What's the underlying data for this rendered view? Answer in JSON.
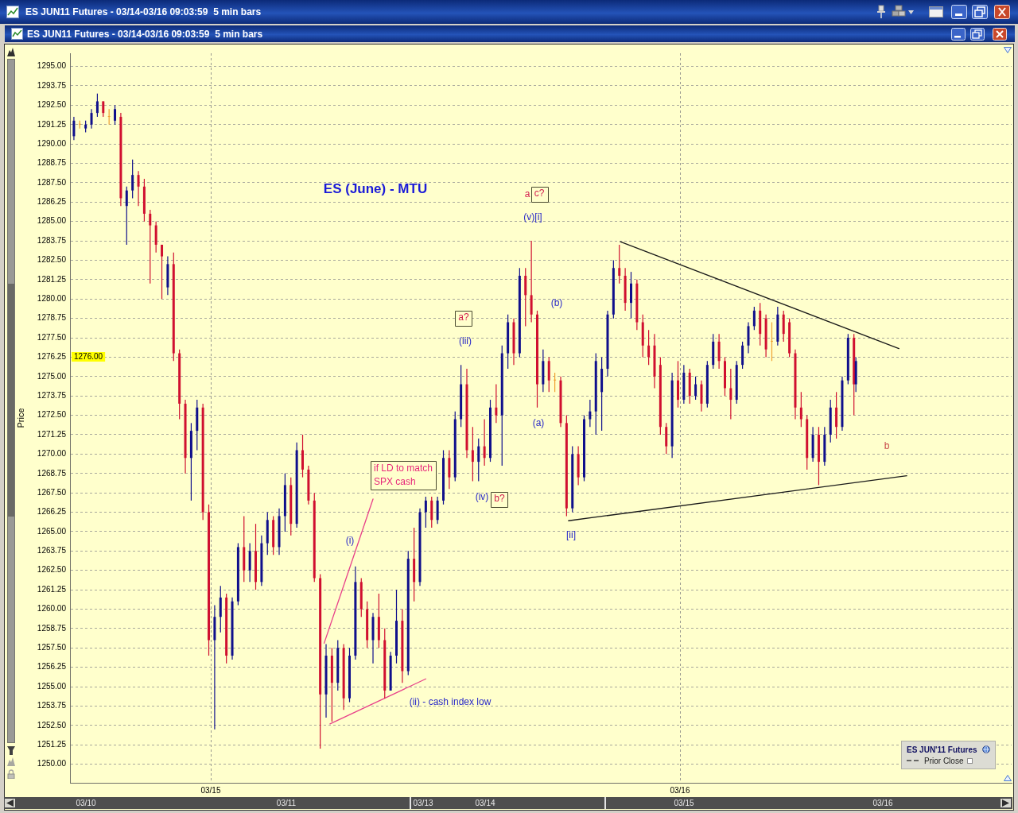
{
  "chart_data": {
    "type": "candlestick",
    "title": "ES JUN11 Futures - 03/14-03/16 09:03:59  5 min bars",
    "subtitle": "ES (June) - MTU",
    "ylabel": "Price",
    "legend_title": "ES JUN'11 Futures",
    "xlim": [
      "--03-14T16:48",
      "--03-16T16:58"
    ],
    "xticks": [
      {
        "value": "--03-15",
        "label": "03/15"
      },
      {
        "value": "--03-16",
        "label": "03/16"
      }
    ],
    "ylim": [
      1248.8,
      1295.85
    ],
    "yticks": [
      {
        "value": 1250,
        "label": "1250.00"
      },
      1251.25,
      {
        "value": 1252.5,
        "label": "1252.50"
      },
      1253.75,
      {
        "value": 1255,
        "label": "1255.00"
      },
      1256.25,
      {
        "value": 1257.5,
        "label": "1257.50"
      },
      1258.75,
      {
        "value": 1260,
        "label": "1260.00"
      },
      1261.25,
      {
        "value": 1262.5,
        "label": "1262.50"
      },
      1263.75,
      {
        "value": 1265,
        "label": "1265.00"
      },
      1266.25,
      {
        "value": 1267.5,
        "label": "1267.50"
      },
      1268.75,
      {
        "value": 1270,
        "label": "1270.00"
      },
      1271.25,
      {
        "value": 1272.5,
        "label": "1272.50"
      },
      1273.75,
      {
        "value": 1275,
        "label": "1275.00"
      },
      1276.25,
      {
        "value": 1277.5,
        "label": "1277.50"
      },
      1278.75,
      {
        "value": 1280,
        "label": "1280.00"
      },
      1281.25,
      {
        "value": 1282.5,
        "label": "1282.50"
      },
      1283.75,
      {
        "value": 1285,
        "label": "1285.00"
      },
      1286.25,
      {
        "value": 1287.5,
        "label": "1287.50"
      },
      1288.75,
      {
        "value": 1290,
        "label": "1290.00"
      },
      1291.25,
      {
        "value": 1292.5,
        "label": "1292.50"
      },
      1293.75,
      {
        "value": 1295,
        "label": "1295.00"
      }
    ],
    "grid": "y",
    "ref_lines": [
      {
        "axis": "x",
        "value": "--03-15",
        "color": "#9a9a90",
        "line_style": "dashed"
      },
      {
        "axis": "x",
        "value": "--03-16",
        "color": "#9a9a90",
        "line_style": "dashed"
      }
    ],
    "legend": "bottom right",
    "marker": "none",
    "series": [
      {
        "type": "candlestick",
        "x": [
          "--03-14T17:00",
          "--03-14T17:18",
          "--03-14T17:36",
          "--03-14T17:54",
          "--03-14T18:12",
          "--03-14T18:30",
          "--03-14T18:48",
          "--03-14T19:06",
          "--03-14T19:24",
          "--03-14T19:42",
          "--03-14T20:00",
          "--03-14T20:18",
          "--03-14T20:36",
          "--03-14T20:54",
          "--03-14T21:12",
          "--03-14T21:30",
          "--03-14T21:48",
          "--03-14T22:06",
          "--03-14T22:24",
          "--03-14T22:42",
          "--03-14T23:00",
          "--03-14T23:18",
          "--03-14T23:36",
          "--03-14T23:54",
          "--03-15T00:12",
          "--03-15T00:30",
          "--03-15T00:48",
          "--03-15T01:06",
          "--03-15T01:24",
          "--03-15T01:42",
          "--03-15T02:00",
          "--03-15T02:18",
          "--03-15T02:36",
          "--03-15T02:54",
          "--03-15T03:12",
          "--03-15T03:30",
          "--03-15T03:48",
          "--03-15T04:06",
          "--03-15T04:24",
          "--03-15T04:42",
          "--03-15T05:00",
          "--03-15T05:18",
          "--03-15T05:36",
          "--03-15T05:54",
          "--03-15T06:12",
          "--03-15T06:30",
          "--03-15T06:48",
          "--03-15T07:06",
          "--03-15T07:24",
          "--03-15T07:42",
          "--03-15T08:00",
          "--03-15T08:18",
          "--03-15T08:36",
          "--03-15T08:54",
          "--03-15T09:12",
          "--03-15T09:30",
          "--03-15T09:48",
          "--03-15T10:06",
          "--03-15T10:24",
          "--03-15T10:42",
          "--03-15T11:00",
          "--03-15T11:18",
          "--03-15T11:36",
          "--03-15T11:54",
          "--03-15T12:12",
          "--03-15T12:30",
          "--03-15T12:48",
          "--03-15T13:06",
          "--03-15T13:24",
          "--03-15T13:42",
          "--03-15T14:00",
          "--03-15T14:18",
          "--03-15T14:36",
          "--03-15T14:54",
          "--03-15T15:12",
          "--03-15T15:30",
          "--03-15T15:48",
          "--03-15T16:06",
          "--03-15T16:24",
          "--03-15T16:42",
          "--03-15T17:00",
          "--03-15T17:18",
          "--03-15T17:36",
          "--03-15T17:54",
          "--03-15T18:12",
          "--03-15T18:30",
          "--03-15T18:48",
          "--03-15T19:06",
          "--03-15T19:24",
          "--03-15T19:42",
          "--03-15T20:00",
          "--03-15T20:18",
          "--03-15T20:36",
          "--03-15T20:54",
          "--03-15T21:12",
          "--03-15T21:30",
          "--03-15T21:48",
          "--03-15T22:06",
          "--03-15T22:24",
          "--03-15T22:42",
          "--03-15T23:00",
          "--03-15T23:18",
          "--03-15T23:36",
          "--03-15T23:54",
          "--03-16T00:12",
          "--03-16T00:30",
          "--03-16T00:48",
          "--03-16T01:06",
          "--03-16T01:24",
          "--03-16T01:42",
          "--03-16T02:00",
          "--03-16T02:18",
          "--03-16T02:36",
          "--03-16T02:54",
          "--03-16T03:12",
          "--03-16T03:30",
          "--03-16T03:48",
          "--03-16T04:06",
          "--03-16T04:24",
          "--03-16T04:42",
          "--03-16T05:00",
          "--03-16T05:18",
          "--03-16T05:36",
          "--03-16T05:54",
          "--03-16T06:12",
          "--03-16T06:30",
          "--03-16T06:48",
          "--03-16T07:06",
          "--03-16T07:24",
          "--03-16T07:42",
          "--03-16T08:00",
          "--03-16T08:18",
          "--03-16T08:36",
          "--03-16T08:54",
          "--03-16T09:00"
        ],
        "ohlc": [
          [
            1290.5,
            1291.75,
            1290.25,
            1291.5
          ],
          [
            1291.25,
            1291.5,
            1291,
            1291.25
          ],
          [
            1291,
            1291.5,
            1290.75,
            1291.25
          ],
          [
            1291.25,
            1292.25,
            1291,
            1292
          ],
          [
            1292,
            1293.25,
            1291.75,
            1292.75
          ],
          [
            1292.75,
            1292.75,
            1291.75,
            1292
          ],
          [
            1291.75,
            1292.25,
            1291.25,
            1291.75
          ],
          [
            1291.5,
            1292.5,
            1291.25,
            1292.25
          ],
          [
            1291.75,
            1292,
            1286,
            1286.5
          ],
          [
            1286,
            1287.25,
            1283.5,
            1287
          ],
          [
            1287,
            1289,
            1286.5,
            1288
          ],
          [
            1288,
            1288.25,
            1286,
            1287.25
          ],
          [
            1287.25,
            1287.75,
            1285,
            1285.5
          ],
          [
            1285.5,
            1285.75,
            1281,
            1284.75
          ],
          [
            1284.75,
            1285,
            1283,
            1283.5
          ],
          [
            1283.5,
            1283.5,
            1280,
            1282.75
          ],
          [
            1280.75,
            1282.75,
            1280.25,
            1282.25
          ],
          [
            1282.25,
            1283,
            1276,
            1276.5
          ],
          [
            1276.5,
            1276.75,
            1272.25,
            1273.25
          ],
          [
            1273.25,
            1273.5,
            1268.75,
            1269.75
          ],
          [
            1269.75,
            1272,
            1267,
            1271.5
          ],
          [
            1271.5,
            1273.5,
            1270.25,
            1273
          ],
          [
            1273,
            1273.25,
            1265.75,
            1266.25
          ],
          [
            1266.25,
            1266.75,
            1257,
            1258
          ],
          [
            1258,
            1260.25,
            1252.25,
            1259.5
          ],
          [
            1259.5,
            1261.5,
            1258.5,
            1260.75
          ],
          [
            1260.75,
            1261,
            1256.5,
            1257
          ],
          [
            1257,
            1260.75,
            1256.75,
            1260.5
          ],
          [
            1260.5,
            1264.25,
            1260.25,
            1264
          ],
          [
            1264,
            1266,
            1261.75,
            1262.5
          ],
          [
            1262.5,
            1264.25,
            1261.75,
            1263.75
          ],
          [
            1263.75,
            1265.5,
            1261.25,
            1261.75
          ],
          [
            1261.75,
            1264.75,
            1261.5,
            1264.25
          ],
          [
            1264.25,
            1266.25,
            1263.5,
            1265.75
          ],
          [
            1265.75,
            1266,
            1263.5,
            1264
          ],
          [
            1264,
            1266.5,
            1263.5,
            1266
          ],
          [
            1266,
            1268.75,
            1265,
            1268
          ],
          [
            1268,
            1268.5,
            1264.75,
            1265.5
          ],
          [
            1265.5,
            1270.75,
            1265.25,
            1270.25
          ],
          [
            1270.25,
            1271.25,
            1268.5,
            1269
          ],
          [
            1269,
            1269.25,
            1266.75,
            1267
          ],
          [
            1267,
            1267.5,
            1261.75,
            1262
          ],
          [
            1262,
            1262.25,
            1251,
            1254.5
          ],
          [
            1254.5,
            1257.75,
            1253,
            1257
          ],
          [
            1257,
            1257.5,
            1252.75,
            1255.25
          ],
          [
            1255.25,
            1258,
            1254.75,
            1257.5
          ],
          [
            1257.5,
            1257.75,
            1253.5,
            1254.25
          ],
          [
            1254.25,
            1257.5,
            1254,
            1257
          ],
          [
            1257,
            1262.75,
            1256.75,
            1261.75
          ],
          [
            1261.75,
            1262,
            1259.5,
            1260
          ],
          [
            1260,
            1260.5,
            1257.5,
            1258
          ],
          [
            1258,
            1259.75,
            1256.5,
            1259.5
          ],
          [
            1259.5,
            1261,
            1257.5,
            1258
          ],
          [
            1258,
            1258.75,
            1254.25,
            1254.75
          ],
          [
            1254.75,
            1257.25,
            1254.75,
            1257
          ],
          [
            1257,
            1261.25,
            1256.5,
            1259.25
          ],
          [
            1259.25,
            1260,
            1255.25,
            1256
          ],
          [
            1256,
            1263.75,
            1255.75,
            1263.25
          ],
          [
            1263.25,
            1265.25,
            1260.5,
            1261.75
          ],
          [
            1261.75,
            1266.5,
            1261.5,
            1266.25
          ],
          [
            1266.25,
            1267.25,
            1265.25,
            1267
          ],
          [
            1267,
            1267.25,
            1265.25,
            1265.75
          ],
          [
            1265.75,
            1267.25,
            1265.5,
            1267
          ],
          [
            1267,
            1270.25,
            1266.75,
            1269.75
          ],
          [
            1269.75,
            1270.25,
            1267.75,
            1268.5
          ],
          [
            1268.5,
            1272.75,
            1268.25,
            1272.25
          ],
          [
            1272.25,
            1275.75,
            1271.75,
            1274.5
          ],
          [
            1274.5,
            1275.5,
            1269.75,
            1270.25
          ],
          [
            1270.25,
            1271.75,
            1268.25,
            1269.5
          ],
          [
            1269.5,
            1271,
            1268.25,
            1270.5
          ],
          [
            1270.5,
            1272.25,
            1269.25,
            1269.75
          ],
          [
            1269.75,
            1273.5,
            1269.5,
            1273
          ],
          [
            1273,
            1274.5,
            1272,
            1272.5
          ],
          [
            1272.5,
            1277,
            1269.25,
            1276.5
          ],
          [
            1276.5,
            1279,
            1275.5,
            1278.5
          ],
          [
            1278.5,
            1278.75,
            1275.75,
            1276.5
          ],
          [
            1276.5,
            1282,
            1276.25,
            1281.5
          ],
          [
            1281.5,
            1282,
            1278.25,
            1280.25
          ],
          [
            1280.25,
            1283.75,
            1278.5,
            1279
          ],
          [
            1279,
            1279.25,
            1273,
            1274.5
          ],
          [
            1274.5,
            1276.75,
            1274,
            1276
          ],
          [
            1276,
            1276.25,
            1274,
            1274.75
          ],
          [
            1274.75,
            1275.25,
            1274,
            1274.75
          ],
          [
            1274.75,
            1275,
            1271.75,
            1272
          ],
          [
            1272,
            1272.5,
            1266,
            1266.5
          ],
          [
            1266.5,
            1270.5,
            1266.25,
            1270
          ],
          [
            1270,
            1270.5,
            1268,
            1268.5
          ],
          [
            1268.5,
            1272.5,
            1268.25,
            1272.25
          ],
          [
            1272.25,
            1273.5,
            1271.75,
            1272.75
          ],
          [
            1272.75,
            1276.5,
            1271.25,
            1276
          ],
          [
            1274,
            1276.25,
            1271.5,
            1275.5
          ],
          [
            1275.5,
            1279.25,
            1275,
            1279
          ],
          [
            1279,
            1282.5,
            1278.75,
            1282
          ],
          [
            1282,
            1283.5,
            1281,
            1281.5
          ],
          [
            1281.5,
            1282,
            1279.25,
            1279.75
          ],
          [
            1279.75,
            1281.75,
            1278.75,
            1281
          ],
          [
            1281,
            1281.25,
            1278,
            1278.5
          ],
          [
            1278.5,
            1279,
            1276.25,
            1277
          ],
          [
            1277,
            1278,
            1275.75,
            1276.25
          ],
          [
            1277,
            1277.75,
            1274.25,
            1275
          ],
          [
            1275.75,
            1276.25,
            1271.25,
            1271.75
          ],
          [
            1271.75,
            1272,
            1270,
            1270.5
          ],
          [
            1270.5,
            1275.25,
            1269.75,
            1274.75
          ],
          [
            1274.75,
            1276,
            1273,
            1273.5
          ],
          [
            1273.5,
            1275.75,
            1273.25,
            1275.25
          ],
          [
            1275.25,
            1275.5,
            1273.25,
            1273.75
          ],
          [
            1273.75,
            1275,
            1273.5,
            1274.5
          ],
          [
            1274.5,
            1274.75,
            1272.75,
            1273.25
          ],
          [
            1273.25,
            1276,
            1273,
            1275.75
          ],
          [
            1275.75,
            1277.75,
            1275.5,
            1277.25
          ],
          [
            1277.25,
            1277.75,
            1275.5,
            1276
          ],
          [
            1276,
            1276.25,
            1273.75,
            1274.25
          ],
          [
            1274.25,
            1275.5,
            1272.25,
            1273.5
          ],
          [
            1273.5,
            1276,
            1273.25,
            1275.75
          ],
          [
            1275.75,
            1277.25,
            1275.5,
            1277
          ],
          [
            1277,
            1278.5,
            1276.5,
            1278.25
          ],
          [
            1278.25,
            1279.5,
            1278,
            1279.25
          ],
          [
            1279.25,
            1279.75,
            1277,
            1277.75
          ],
          [
            1278.75,
            1279,
            1276.25,
            1276.75
          ],
          [
            1277.25,
            1278.5,
            1276,
            1277.25
          ],
          [
            1277.25,
            1279.5,
            1277,
            1279
          ],
          [
            1279,
            1279.25,
            1277.25,
            1277.75
          ],
          [
            1278.5,
            1278.75,
            1276.25,
            1276.5
          ],
          [
            1276.5,
            1276.75,
            1272.25,
            1273
          ],
          [
            1273,
            1274,
            1271.75,
            1272.25
          ],
          [
            1272.25,
            1272.5,
            1269,
            1269.75
          ],
          [
            1269.75,
            1271.75,
            1269.5,
            1271.25
          ],
          [
            1271.25,
            1271.75,
            1268,
            1269.5
          ],
          [
            1269.5,
            1271.75,
            1269.25,
            1271.25
          ],
          [
            1271.25,
            1273.5,
            1270.75,
            1273
          ],
          [
            1273,
            1274,
            1271,
            1271.75
          ],
          [
            1271.75,
            1275,
            1271.5,
            1274.75
          ],
          [
            1274.75,
            1277.75,
            1274.5,
            1277.5
          ],
          [
            1277.5,
            1277.75,
            1272.5,
            1274.5
          ],
          [
            1274.5,
            1276.25,
            1274,
            1276
          ]
        ],
        "colors": [
          "#10108c",
          "#f0a030",
          "#10108c",
          "#10108c",
          "#10108c",
          "#d01030",
          "#f0a030",
          "#10108c",
          "#d01030",
          "#10108c",
          "#10108c",
          "#d01030",
          "#d01030",
          "#d01030",
          "#d01030",
          "#d01030",
          "#10108c",
          "#d01030",
          "#d01030",
          "#d01030",
          "#10108c",
          "#10108c",
          "#d01030",
          "#d01030",
          "#10108c",
          "#10108c",
          "#d01030",
          "#10108c",
          "#10108c",
          "#d01030",
          "#10108c",
          "#d01030",
          "#10108c",
          "#10108c",
          "#d01030",
          "#10108c",
          "#10108c",
          "#d01030",
          "#10108c",
          "#d01030",
          "#d01030",
          "#d01030",
          "#d01030",
          "#10108c",
          "#d01030",
          "#10108c",
          "#d01030",
          "#10108c",
          "#10108c",
          "#d01030",
          "#d01030",
          "#10108c",
          "#d01030",
          "#d01030",
          "#10108c",
          "#10108c",
          "#d01030",
          "#10108c",
          "#d01030",
          "#10108c",
          "#10108c",
          "#d01030",
          "#10108c",
          "#10108c",
          "#d01030",
          "#10108c",
          "#10108c",
          "#d01030",
          "#d01030",
          "#10108c",
          "#d01030",
          "#10108c",
          "#d01030",
          "#10108c",
          "#10108c",
          "#d01030",
          "#10108c",
          "#d01030",
          "#d01030",
          "#d01030",
          "#10108c",
          "#d01030",
          "#f0a030",
          "#d01030",
          "#d01030",
          "#10108c",
          "#d01030",
          "#10108c",
          "#10108c",
          "#10108c",
          "#10108c",
          "#10108c",
          "#10108c",
          "#d01030",
          "#d01030",
          "#10108c",
          "#d01030",
          "#d01030",
          "#d01030",
          "#d01030",
          "#d01030",
          "#d01030",
          "#10108c",
          "#d01030",
          "#10108c",
          "#d01030",
          "#10108c",
          "#d01030",
          "#10108c",
          "#10108c",
          "#d01030",
          "#d01030",
          "#d01030",
          "#10108c",
          "#10108c",
          "#10108c",
          "#10108c",
          "#d01030",
          "#d01030",
          "#f0a030",
          "#10108c",
          "#d01030",
          "#d01030",
          "#d01030",
          "#d01030",
          "#d01030",
          "#10108c",
          "#d01030",
          "#10108c",
          "#10108c",
          "#d01030",
          "#10108c",
          "#10108c",
          "#d01030",
          "#10108c"
        ]
      },
      {
        "name": "Prior Close",
        "type": "line",
        "color": "#404040",
        "line_style": "dashed"
      },
      {
        "type": "line",
        "color": "#1a1a1a",
        "x": [
          "--03-15T20:57",
          "--03-16T11:12"
        ],
        "values": [
          1283.7,
          1276.8
        ]
      },
      {
        "type": "line",
        "color": "#1a1a1a",
        "x": [
          "--03-15T18:18",
          "--03-16T11:36"
        ],
        "values": [
          1265.7,
          1268.6
        ]
      },
      {
        "type": "line",
        "color": "#e8408a",
        "x": [
          "--03-15T06:06",
          "--03-15T11:00"
        ],
        "values": [
          1252.6,
          1255.5
        ]
      },
      {
        "type": "line",
        "color": "#e8408a",
        "x": [
          "--03-15T05:48",
          "--03-15T08:18"
        ],
        "values": [
          1257.8,
          1267.1
        ]
      }
    ],
    "annotations": [
      "a",
      "c?",
      "(v)[i]",
      "a?",
      "(iii)",
      "(b)",
      "(a)",
      "(iv)",
      "b?",
      "[ii]",
      "(i)",
      "(ii) - cash index low",
      "if LD to match\nSPX cash",
      "b",
      "1276.00",
      "03/10",
      "03/11",
      "03/13",
      "03/14",
      "03/15",
      "03/16"
    ]
  }
}
